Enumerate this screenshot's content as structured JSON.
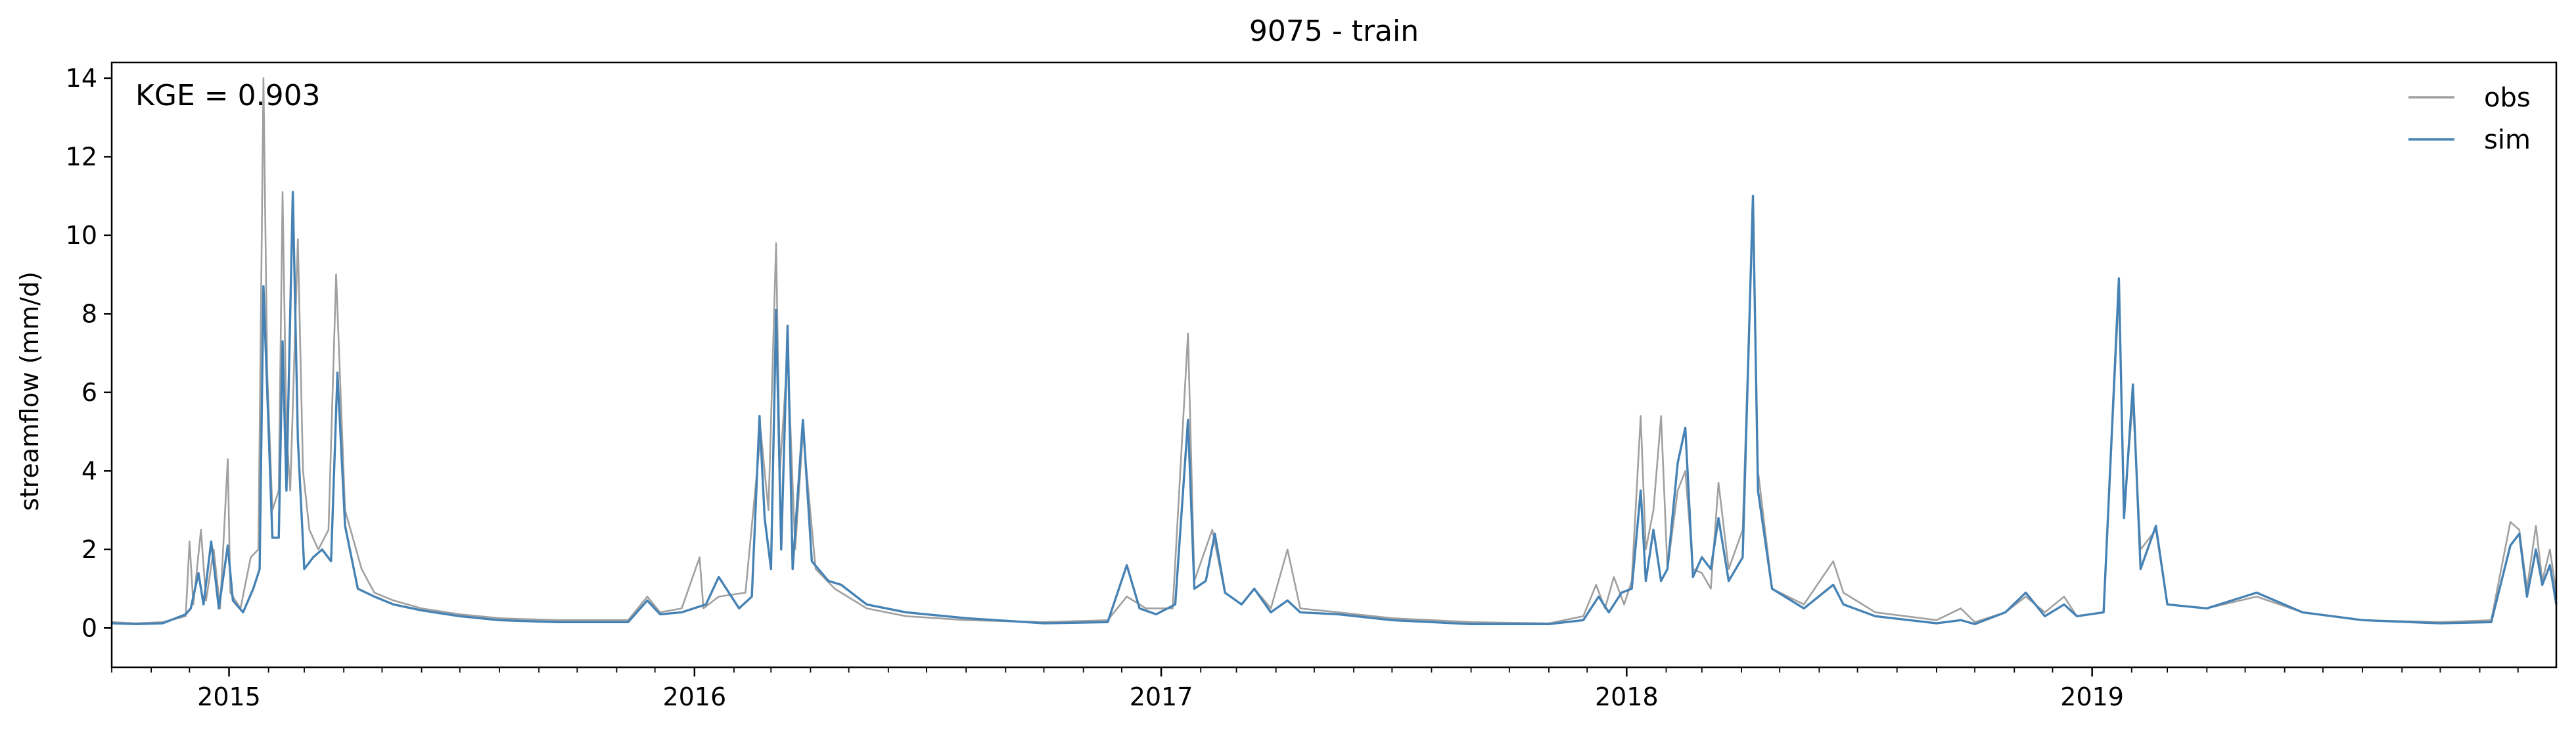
{
  "chart_data": {
    "type": "line",
    "title": "9075 - train",
    "xlabel": "",
    "ylabel": "streamflow (mm/d)",
    "annotation": "KGE = 0.903",
    "xlim": [
      "2014-10-01",
      "2019-12-31"
    ],
    "ylim": [
      -1,
      14.4
    ],
    "yticks": [
      0,
      2,
      4,
      6,
      8,
      10,
      12,
      14
    ],
    "xticks": [
      {
        "date": "2015-01-01",
        "label": "2015"
      },
      {
        "date": "2016-01-01",
        "label": "2016"
      },
      {
        "date": "2017-01-01",
        "label": "2017"
      },
      {
        "date": "2018-01-01",
        "label": "2018"
      },
      {
        "date": "2019-01-01",
        "label": "2019"
      }
    ],
    "legend": {
      "position": "top-right",
      "frame": false
    },
    "grid": false,
    "series": [
      {
        "name": "obs",
        "color": "#a0a0a0",
        "points": [
          [
            "2014-10-01",
            0.15
          ],
          [
            "2014-10-20",
            0.12
          ],
          [
            "2014-11-10",
            0.15
          ],
          [
            "2014-11-28",
            0.3
          ],
          [
            "2014-12-01",
            2.2
          ],
          [
            "2014-12-04",
            0.6
          ],
          [
            "2014-12-10",
            2.5
          ],
          [
            "2014-12-14",
            0.7
          ],
          [
            "2014-12-20",
            2.0
          ],
          [
            "2014-12-25",
            0.5
          ],
          [
            "2014-12-31",
            4.3
          ],
          [
            "2015-01-02",
            0.9
          ],
          [
            "2015-01-10",
            0.5
          ],
          [
            "2015-01-18",
            1.8
          ],
          [
            "2015-01-24",
            2.0
          ],
          [
            "2015-01-28",
            14.0
          ],
          [
            "2015-01-31",
            6.5
          ],
          [
            "2015-02-04",
            3.0
          ],
          [
            "2015-02-09",
            3.5
          ],
          [
            "2015-02-12",
            11.1
          ],
          [
            "2015-02-15",
            5.0
          ],
          [
            "2015-02-18",
            3.5
          ],
          [
            "2015-02-24",
            9.9
          ],
          [
            "2015-02-28",
            4.0
          ],
          [
            "2015-03-05",
            2.5
          ],
          [
            "2015-03-12",
            2.0
          ],
          [
            "2015-03-20",
            2.5
          ],
          [
            "2015-03-26",
            9.0
          ],
          [
            "2015-04-02",
            3.0
          ],
          [
            "2015-04-15",
            1.5
          ],
          [
            "2015-04-25",
            0.9
          ],
          [
            "2015-05-10",
            0.7
          ],
          [
            "2015-06-01",
            0.5
          ],
          [
            "2015-07-01",
            0.35
          ],
          [
            "2015-08-01",
            0.25
          ],
          [
            "2015-09-15",
            0.2
          ],
          [
            "2015-11-10",
            0.2
          ],
          [
            "2015-11-25",
            0.8
          ],
          [
            "2015-12-05",
            0.4
          ],
          [
            "2015-12-22",
            0.5
          ],
          [
            "2016-01-05",
            1.8
          ],
          [
            "2016-01-08",
            0.5
          ],
          [
            "2016-01-20",
            0.8
          ],
          [
            "2016-02-10",
            0.9
          ],
          [
            "2016-02-22",
            5.0
          ],
          [
            "2016-02-28",
            3.0
          ],
          [
            "2016-03-05",
            9.8
          ],
          [
            "2016-03-08",
            4.0
          ],
          [
            "2016-03-14",
            7.0
          ],
          [
            "2016-03-20",
            2.0
          ],
          [
            "2016-03-26",
            5.0
          ],
          [
            "2016-04-05",
            1.5
          ],
          [
            "2016-04-20",
            1.0
          ],
          [
            "2016-05-15",
            0.5
          ],
          [
            "2016-06-15",
            0.3
          ],
          [
            "2016-08-01",
            0.2
          ],
          [
            "2016-10-01",
            0.15
          ],
          [
            "2016-11-20",
            0.2
          ],
          [
            "2016-12-05",
            0.8
          ],
          [
            "2016-12-20",
            0.5
          ],
          [
            "2017-01-10",
            0.5
          ],
          [
            "2017-01-22",
            7.5
          ],
          [
            "2017-01-27",
            1.2
          ],
          [
            "2017-02-10",
            2.5
          ],
          [
            "2017-02-20",
            0.9
          ],
          [
            "2017-03-05",
            0.6
          ],
          [
            "2017-03-15",
            1.0
          ],
          [
            "2017-03-28",
            0.5
          ],
          [
            "2017-04-10",
            2.0
          ],
          [
            "2017-04-20",
            0.5
          ],
          [
            "2017-05-20",
            0.4
          ],
          [
            "2017-07-01",
            0.25
          ],
          [
            "2017-09-01",
            0.15
          ],
          [
            "2017-11-01",
            0.12
          ],
          [
            "2017-11-28",
            0.3
          ],
          [
            "2017-12-08",
            1.1
          ],
          [
            "2017-12-15",
            0.5
          ],
          [
            "2017-12-22",
            1.3
          ],
          [
            "2017-12-30",
            0.6
          ],
          [
            "2018-01-05",
            1.2
          ],
          [
            "2018-01-12",
            5.4
          ],
          [
            "2018-01-16",
            2.0
          ],
          [
            "2018-01-22",
            3.0
          ],
          [
            "2018-01-28",
            5.4
          ],
          [
            "2018-02-02",
            1.5
          ],
          [
            "2018-02-10",
            3.5
          ],
          [
            "2018-02-16",
            4.0
          ],
          [
            "2018-02-22",
            1.5
          ],
          [
            "2018-03-01",
            1.4
          ],
          [
            "2018-03-08",
            1.0
          ],
          [
            "2018-03-14",
            3.7
          ],
          [
            "2018-03-22",
            1.5
          ],
          [
            "2018-04-02",
            2.5
          ],
          [
            "2018-04-10",
            10.8
          ],
          [
            "2018-04-14",
            4.0
          ],
          [
            "2018-04-25",
            1.0
          ],
          [
            "2018-05-20",
            0.6
          ],
          [
            "2018-06-12",
            1.7
          ],
          [
            "2018-06-20",
            0.9
          ],
          [
            "2018-07-15",
            0.4
          ],
          [
            "2018-09-01",
            0.2
          ],
          [
            "2018-09-20",
            0.5
          ],
          [
            "2018-10-01",
            0.15
          ],
          [
            "2018-10-25",
            0.4
          ],
          [
            "2018-11-10",
            0.8
          ],
          [
            "2018-11-25",
            0.4
          ],
          [
            "2018-12-10",
            0.8
          ],
          [
            "2018-12-20",
            0.3
          ],
          [
            "2019-01-10",
            0.4
          ],
          [
            "2019-01-22",
            8.6
          ],
          [
            "2019-01-26",
            3.0
          ],
          [
            "2019-02-02",
            5.8
          ],
          [
            "2019-02-08",
            2.0
          ],
          [
            "2019-02-20",
            2.5
          ],
          [
            "2019-03-01",
            0.6
          ],
          [
            "2019-04-01",
            0.5
          ],
          [
            "2019-05-10",
            0.8
          ],
          [
            "2019-06-15",
            0.4
          ],
          [
            "2019-08-01",
            0.2
          ],
          [
            "2019-10-01",
            0.15
          ],
          [
            "2019-11-10",
            0.2
          ],
          [
            "2019-11-25",
            2.7
          ],
          [
            "2019-12-02",
            2.5
          ],
          [
            "2019-12-08",
            1.0
          ],
          [
            "2019-12-15",
            2.6
          ],
          [
            "2019-12-20",
            1.2
          ],
          [
            "2019-12-26",
            2.0
          ],
          [
            "2019-12-31",
            0.9
          ]
        ]
      },
      {
        "name": "sim",
        "color": "#4682b4",
        "points": [
          [
            "2014-10-01",
            0.12
          ],
          [
            "2014-10-20",
            0.1
          ],
          [
            "2014-11-10",
            0.12
          ],
          [
            "2014-11-28",
            0.35
          ],
          [
            "2014-12-02",
            0.5
          ],
          [
            "2014-12-08",
            1.4
          ],
          [
            "2014-12-12",
            0.6
          ],
          [
            "2014-12-18",
            2.2
          ],
          [
            "2014-12-24",
            0.5
          ],
          [
            "2014-12-31",
            2.1
          ],
          [
            "2015-01-04",
            0.7
          ],
          [
            "2015-01-12",
            0.4
          ],
          [
            "2015-01-20",
            1.0
          ],
          [
            "2015-01-25",
            1.5
          ],
          [
            "2015-01-28",
            8.7
          ],
          [
            "2015-01-31",
            6.0
          ],
          [
            "2015-02-04",
            2.3
          ],
          [
            "2015-02-09",
            2.3
          ],
          [
            "2015-02-12",
            7.3
          ],
          [
            "2015-02-15",
            3.5
          ],
          [
            "2015-02-20",
            11.1
          ],
          [
            "2015-02-24",
            4.8
          ],
          [
            "2015-03-01",
            1.5
          ],
          [
            "2015-03-08",
            1.8
          ],
          [
            "2015-03-15",
            2.0
          ],
          [
            "2015-03-22",
            1.7
          ],
          [
            "2015-03-27",
            6.5
          ],
          [
            "2015-04-02",
            2.6
          ],
          [
            "2015-04-12",
            1.0
          ],
          [
            "2015-04-25",
            0.8
          ],
          [
            "2015-05-10",
            0.6
          ],
          [
            "2015-06-01",
            0.45
          ],
          [
            "2015-07-01",
            0.3
          ],
          [
            "2015-08-01",
            0.2
          ],
          [
            "2015-09-15",
            0.15
          ],
          [
            "2015-11-10",
            0.15
          ],
          [
            "2015-11-25",
            0.7
          ],
          [
            "2015-12-05",
            0.35
          ],
          [
            "2015-12-22",
            0.4
          ],
          [
            "2016-01-10",
            0.6
          ],
          [
            "2016-01-20",
            1.3
          ],
          [
            "2016-02-05",
            0.5
          ],
          [
            "2016-02-15",
            0.8
          ],
          [
            "2016-02-21",
            5.4
          ],
          [
            "2016-02-25",
            2.8
          ],
          [
            "2016-03-01",
            1.5
          ],
          [
            "2016-03-05",
            8.1
          ],
          [
            "2016-03-09",
            2.0
          ],
          [
            "2016-03-14",
            7.7
          ],
          [
            "2016-03-18",
            1.5
          ],
          [
            "2016-03-26",
            5.3
          ],
          [
            "2016-04-02",
            1.7
          ],
          [
            "2016-04-15",
            1.2
          ],
          [
            "2016-04-25",
            1.1
          ],
          [
            "2016-05-15",
            0.6
          ],
          [
            "2016-06-15",
            0.4
          ],
          [
            "2016-08-01",
            0.25
          ],
          [
            "2016-10-01",
            0.12
          ],
          [
            "2016-11-20",
            0.15
          ],
          [
            "2016-12-05",
            1.6
          ],
          [
            "2016-12-15",
            0.5
          ],
          [
            "2016-12-28",
            0.35
          ],
          [
            "2017-01-12",
            0.6
          ],
          [
            "2017-01-22",
            5.3
          ],
          [
            "2017-01-27",
            1.0
          ],
          [
            "2017-02-05",
            1.2
          ],
          [
            "2017-02-12",
            2.4
          ],
          [
            "2017-02-20",
            0.9
          ],
          [
            "2017-03-05",
            0.6
          ],
          [
            "2017-03-15",
            1.0
          ],
          [
            "2017-03-28",
            0.4
          ],
          [
            "2017-04-10",
            0.7
          ],
          [
            "2017-04-20",
            0.4
          ],
          [
            "2017-05-20",
            0.35
          ],
          [
            "2017-07-01",
            0.2
          ],
          [
            "2017-09-01",
            0.1
          ],
          [
            "2017-11-01",
            0.1
          ],
          [
            "2017-11-28",
            0.2
          ],
          [
            "2017-12-10",
            0.8
          ],
          [
            "2017-12-18",
            0.4
          ],
          [
            "2017-12-28",
            0.9
          ],
          [
            "2018-01-05",
            1.0
          ],
          [
            "2018-01-12",
            3.5
          ],
          [
            "2018-01-16",
            1.2
          ],
          [
            "2018-01-22",
            2.5
          ],
          [
            "2018-01-28",
            1.2
          ],
          [
            "2018-02-02",
            1.5
          ],
          [
            "2018-02-10",
            4.2
          ],
          [
            "2018-02-16",
            5.1
          ],
          [
            "2018-02-22",
            1.3
          ],
          [
            "2018-03-01",
            1.8
          ],
          [
            "2018-03-08",
            1.5
          ],
          [
            "2018-03-14",
            2.8
          ],
          [
            "2018-03-22",
            1.2
          ],
          [
            "2018-04-02",
            1.8
          ],
          [
            "2018-04-10",
            11.0
          ],
          [
            "2018-04-14",
            3.5
          ],
          [
            "2018-04-25",
            1.0
          ],
          [
            "2018-05-20",
            0.5
          ],
          [
            "2018-06-12",
            1.1
          ],
          [
            "2018-06-20",
            0.6
          ],
          [
            "2018-07-15",
            0.3
          ],
          [
            "2018-09-01",
            0.12
          ],
          [
            "2018-09-20",
            0.2
          ],
          [
            "2018-10-01",
            0.1
          ],
          [
            "2018-10-25",
            0.4
          ],
          [
            "2018-11-10",
            0.9
          ],
          [
            "2018-11-25",
            0.3
          ],
          [
            "2018-12-10",
            0.6
          ],
          [
            "2018-12-20",
            0.3
          ],
          [
            "2019-01-10",
            0.4
          ],
          [
            "2019-01-22",
            8.9
          ],
          [
            "2019-01-26",
            2.8
          ],
          [
            "2019-02-02",
            6.2
          ],
          [
            "2019-02-08",
            1.5
          ],
          [
            "2019-02-20",
            2.6
          ],
          [
            "2019-03-01",
            0.6
          ],
          [
            "2019-04-01",
            0.5
          ],
          [
            "2019-05-10",
            0.9
          ],
          [
            "2019-06-15",
            0.4
          ],
          [
            "2019-08-01",
            0.2
          ],
          [
            "2019-10-01",
            0.12
          ],
          [
            "2019-11-10",
            0.15
          ],
          [
            "2019-11-25",
            2.1
          ],
          [
            "2019-12-02",
            2.4
          ],
          [
            "2019-12-08",
            0.8
          ],
          [
            "2019-12-15",
            2.0
          ],
          [
            "2019-12-20",
            1.1
          ],
          [
            "2019-12-26",
            1.6
          ],
          [
            "2019-12-31",
            0.6
          ]
        ]
      }
    ]
  }
}
